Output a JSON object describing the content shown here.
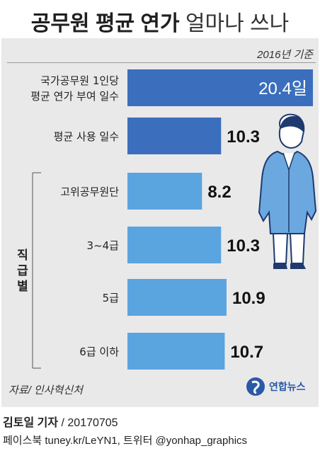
{
  "header": {
    "title_bold": "공무원 평균 연가",
    "title_light": "얼마나 쓰나"
  },
  "basis_note": "2016년 기준",
  "group_label": "직급별",
  "source": "자료/ 인사혁신처",
  "logo_text": "연합뉴스",
  "credit": {
    "name": "김토일 기자",
    "date": "/ 20170705"
  },
  "sns": "페이스북 tuney.kr/LeYN1, 트위터 @yonhap_graphics",
  "colors": {
    "panel": "#e9e9ea",
    "total_bar": "#3b6fbd",
    "grade_bar": "#5aa4e0",
    "figure_outline": "#1e3a6e",
    "figure_fill": "#6ca8e0"
  },
  "chart_data": {
    "type": "bar",
    "orientation": "horizontal",
    "unit": "일",
    "categories": [
      "국가공무원 1인당\n평균 연가 부여 일수",
      "평균 사용 일수",
      "고위공무원단",
      "3~4급",
      "5급",
      "6급 이하"
    ],
    "values": [
      20.4,
      10.3,
      8.2,
      10.3,
      10.9,
      10.7
    ],
    "value_labels": [
      "20.4",
      "10.3",
      "8.2",
      "10.3",
      "10.9",
      "10.7"
    ],
    "value_suffix": [
      "일",
      "",
      "",
      "",
      "",
      ""
    ],
    "group": {
      "label": "직급별",
      "members": [
        "고위공무원단",
        "3~4급",
        "5급",
        "6급 이하"
      ]
    },
    "xlim": [
      0,
      20.4
    ]
  }
}
